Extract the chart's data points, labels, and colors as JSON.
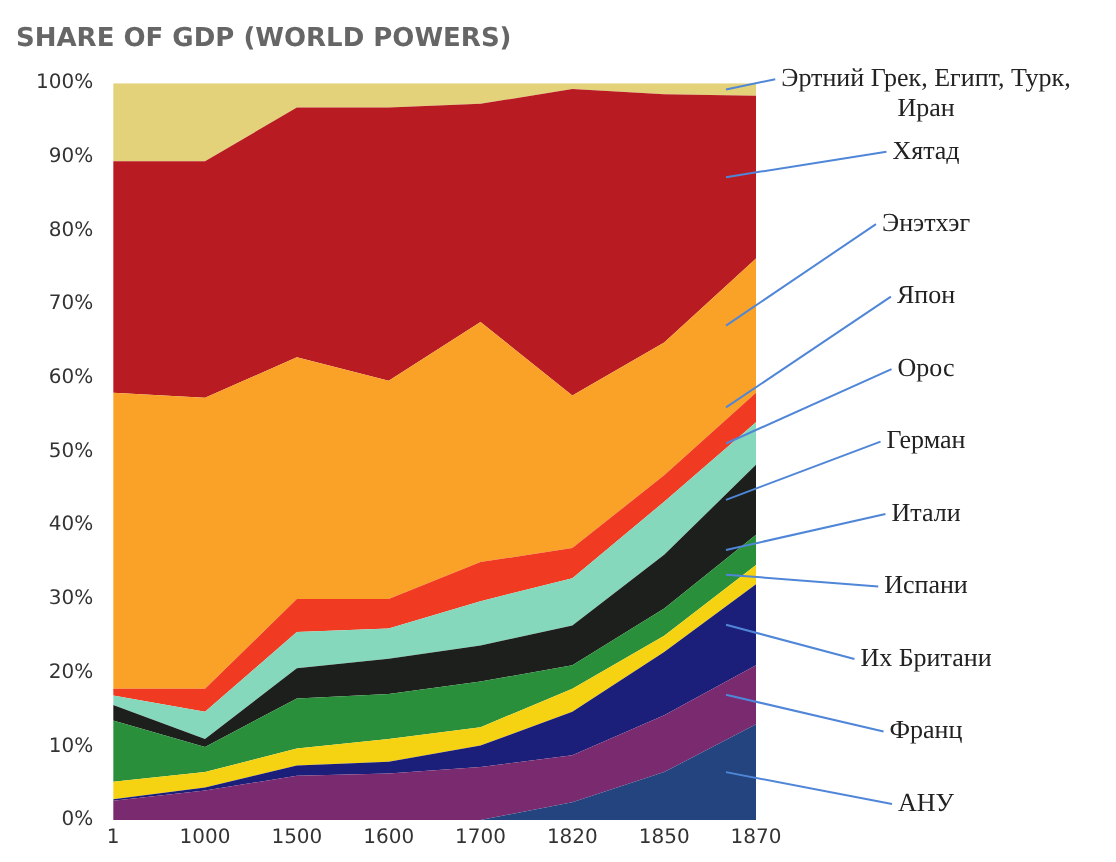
{
  "chart_data": {
    "type": "area",
    "title": "SHARE OF GDP (WORLD POWERS)",
    "stacked": true,
    "categories": [
      "1",
      "1000",
      "1500",
      "1600",
      "1700",
      "1820",
      "1850",
      "1870"
    ],
    "ylim": [
      0,
      100
    ],
    "yticks": [
      {
        "value": 0,
        "label": "0%"
      },
      {
        "value": 10,
        "label": "10%"
      },
      {
        "value": 20,
        "label": "20%"
      },
      {
        "value": 30,
        "label": "30%"
      },
      {
        "value": 40,
        "label": "40%"
      },
      {
        "value": 50,
        "label": "50%"
      },
      {
        "value": 60,
        "label": "60%"
      },
      {
        "value": 70,
        "label": "70%"
      },
      {
        "value": 80,
        "label": "80%"
      },
      {
        "value": 90,
        "label": "90%"
      },
      {
        "value": 100,
        "label": "100%"
      }
    ],
    "grid": false,
    "series": [
      {
        "name": "АНУ",
        "color": "#24447f",
        "values": [
          0,
          0,
          0,
          0,
          0,
          2.4,
          6.5,
          13
        ]
      },
      {
        "name": "Франц",
        "color": "#7a2a6e",
        "values": [
          2.6,
          4,
          6,
          6.3,
          7.2,
          6.4,
          7.7,
          8
        ]
      },
      {
        "name": "Их Британи",
        "color": "#1c1f7a",
        "values": [
          0.2,
          0.4,
          1.4,
          1.6,
          2.9,
          5.9,
          8.6,
          11
        ]
      },
      {
        "name": "Испани",
        "color": "#f5d312",
        "values": [
          2.4,
          2.1,
          2.3,
          3.1,
          2.5,
          3.1,
          2.2,
          2.6
        ]
      },
      {
        "name": "Итали",
        "color": "#2a8f3a",
        "values": [
          8.3,
          3.4,
          6.8,
          6.1,
          6.2,
          3.2,
          3.7,
          4.1
        ]
      },
      {
        "name": "Герман",
        "color": "#1c1f1c",
        "values": [
          2.1,
          1.1,
          4.1,
          4.8,
          4.9,
          5.4,
          7.3,
          9.5
        ]
      },
      {
        "name": "Орос",
        "color": "#86d8bd",
        "values": [
          1.3,
          3.7,
          4.9,
          4.1,
          6,
          6.4,
          7.2,
          5.8
        ]
      },
      {
        "name": "Япон",
        "color": "#f03a22",
        "values": [
          0.9,
          3.1,
          4.5,
          4,
          5.3,
          4.1,
          3.6,
          4
        ]
      },
      {
        "name": "Энэтхэг",
        "color": "#f9a227",
        "values": [
          40.2,
          39.5,
          32.8,
          29.6,
          32.6,
          20.7,
          18,
          18.2
        ]
      },
      {
        "name": "Хятад",
        "color": "#b81c22",
        "values": [
          31.4,
          32.1,
          33.9,
          37.1,
          29.6,
          41.6,
          33.7,
          22.1
        ]
      },
      {
        "name": "Эртний Грек, Египт, Турк, Иран",
        "color": "#e3d27a",
        "values": [
          10.6,
          10.6,
          3.3,
          3.3,
          2.8,
          0.8,
          1.5,
          1.7
        ]
      }
    ]
  }
}
